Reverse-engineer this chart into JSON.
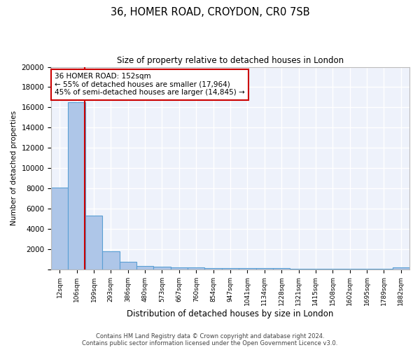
{
  "title": "36, HOMER ROAD, CROYDON, CR0 7SB",
  "subtitle": "Size of property relative to detached houses in London",
  "xlabel": "Distribution of detached houses by size in London",
  "ylabel": "Number of detached properties",
  "bar_color": "#aec6e8",
  "bar_edge_color": "#5a9fd4",
  "categories": [
    "12sqm",
    "106sqm",
    "199sqm",
    "293sqm",
    "386sqm",
    "480sqm",
    "573sqm",
    "667sqm",
    "760sqm",
    "854sqm",
    "947sqm",
    "1041sqm",
    "1134sqm",
    "1228sqm",
    "1321sqm",
    "1415sqm",
    "1508sqm",
    "1602sqm",
    "1695sqm",
    "1789sqm",
    "1882sqm"
  ],
  "values": [
    8100,
    16500,
    5300,
    1800,
    700,
    300,
    275,
    175,
    150,
    125,
    110,
    95,
    85,
    80,
    75,
    70,
    60,
    55,
    50,
    45,
    175
  ],
  "red_line_x": 1.45,
  "annotation_text": "36 HOMER ROAD: 152sqm\n← 55% of detached houses are smaller (17,964)\n45% of semi-detached houses are larger (14,845) →",
  "annotation_box_color": "#ffffff",
  "annotation_box_edge_color": "#cc0000",
  "footnote": "Contains HM Land Registry data © Crown copyright and database right 2024.\nContains public sector information licensed under the Open Government Licence v3.0.",
  "ylim": [
    0,
    20000
  ],
  "yticks": [
    0,
    2000,
    4000,
    6000,
    8000,
    10000,
    12000,
    14000,
    16000,
    18000,
    20000
  ],
  "background_color": "#eef2fb",
  "grid_color": "#ffffff",
  "figure_bg": "#ffffff"
}
